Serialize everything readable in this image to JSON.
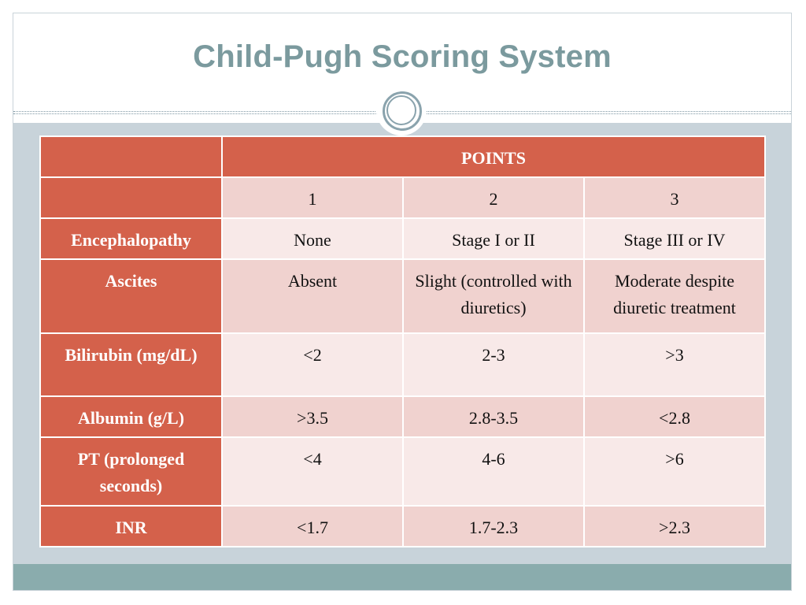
{
  "slide": {
    "title": "Child-Pugh Scoring System"
  },
  "table": {
    "group_header": "POINTS",
    "point_columns": [
      "1",
      "2",
      "3"
    ],
    "rows": [
      {
        "label": "Encephalopathy",
        "values": [
          "None",
          "Stage I or II",
          "Stage III or IV"
        ]
      },
      {
        "label": "Ascites",
        "values": [
          "Absent",
          "Slight (controlled with diuretics)",
          "Moderate despite diuretic treatment"
        ]
      },
      {
        "label": "Bilirubin (mg/dL)",
        "values": [
          "<2",
          "2-3",
          ">3"
        ]
      },
      {
        "label": "Albumin (g/L)",
        "values": [
          ">3.5",
          "2.8-3.5",
          "<2.8"
        ]
      },
      {
        "label": "PT (prolonged seconds)",
        "values": [
          "<4",
          "4-6",
          ">6"
        ]
      },
      {
        "label": "INR",
        "values": [
          "<1.7",
          "1.7-2.3",
          ">2.3"
        ]
      }
    ]
  },
  "colors": {
    "header_fill": "#d4614b",
    "row_light": "#f8e9e8",
    "row_dark": "#f0d2cf",
    "title_text": "#7b9a9e",
    "content_band": "#c8d3da",
    "footer_band": "#8aacad"
  }
}
